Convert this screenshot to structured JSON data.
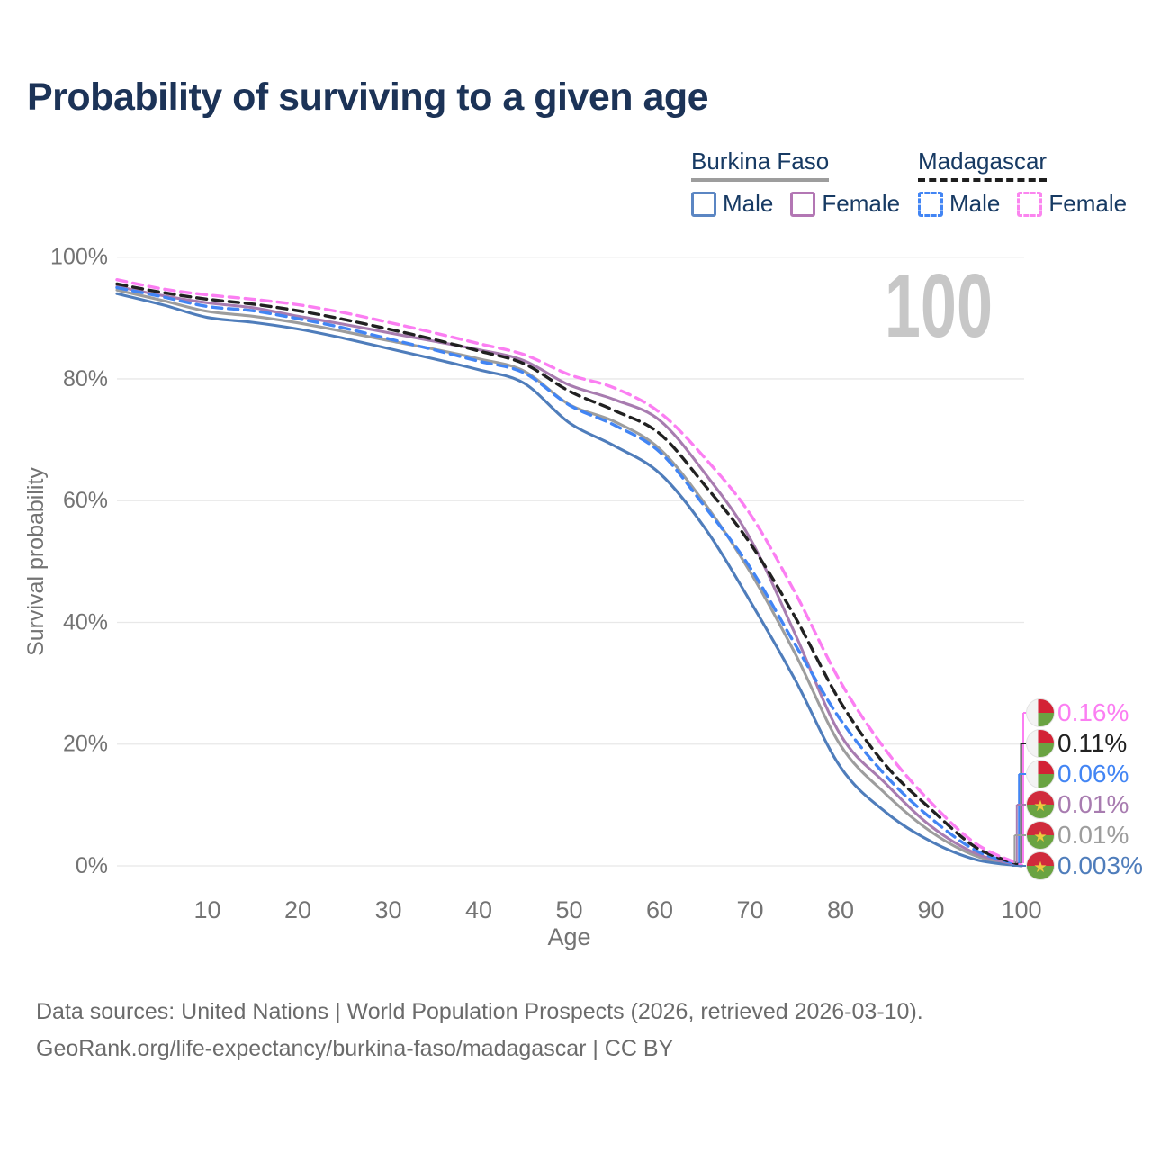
{
  "title": "Probability of surviving to a given age",
  "watermark_age": "100",
  "legend": {
    "groups": [
      {
        "name": "Burkina Faso",
        "line_style": "solid",
        "line_color": "#9d9d9d",
        "items": [
          {
            "label": "Male",
            "color": "#5b86c3",
            "style": "solid"
          },
          {
            "label": "Female",
            "color": "#b377b4",
            "style": "solid"
          }
        ]
      },
      {
        "name": "Madagascar",
        "line_style": "dashed",
        "line_color": "#1f1f1f",
        "items": [
          {
            "label": "Male",
            "color": "#4285f4",
            "style": "dashed"
          },
          {
            "label": "Female",
            "color": "#fb85ef",
            "style": "dashed"
          }
        ]
      }
    ]
  },
  "chart_data": {
    "type": "line",
    "title": "Probability of surviving to a given age",
    "xlabel": "Age",
    "ylabel": "Survival probability",
    "xlim": [
      0,
      100
    ],
    "ylim": [
      0,
      100
    ],
    "grid": "horizontal-only",
    "gridline_color": "#e8e8e8",
    "axis_text_color": "#737373",
    "hover_age_indicator": "100",
    "x_ticks": [
      10,
      20,
      30,
      40,
      50,
      60,
      70,
      80,
      90,
      100
    ],
    "y_ticks": [
      {
        "value": 100,
        "label": "100%"
      },
      {
        "value": 80,
        "label": "80%"
      },
      {
        "value": 60,
        "label": "60%"
      },
      {
        "value": 40,
        "label": "40%"
      },
      {
        "value": 20,
        "label": "20%"
      },
      {
        "value": 0,
        "label": "0%"
      }
    ],
    "x": [
      0,
      5,
      10,
      15,
      20,
      25,
      30,
      35,
      40,
      45,
      50,
      55,
      60,
      65,
      70,
      75,
      80,
      85,
      90,
      95,
      100
    ],
    "series": [
      {
        "name": "Madagascar Female",
        "country": "Madagascar",
        "sex": "Female",
        "color": "#fb7ef2",
        "dash": true,
        "flag": "madagascar",
        "end_label": "0.16%",
        "values": [
          96.3,
          94.8,
          93.8,
          93.1,
          92.2,
          90.9,
          89.3,
          87.6,
          85.8,
          84.0,
          80.7,
          78.5,
          74.5,
          67.0,
          57.8,
          44.8,
          30.2,
          19.0,
          10.4,
          3.6,
          0.16
        ]
      },
      {
        "name": "Madagascar Both sexes",
        "country": "Madagascar",
        "sex": "Both",
        "color": "#212121",
        "dash": true,
        "flag": "madagascar",
        "end_label": "0.11%",
        "values": [
          95.6,
          94.2,
          93.1,
          92.3,
          91.2,
          89.8,
          88.2,
          86.5,
          84.6,
          82.5,
          78.0,
          74.8,
          71.0,
          62.5,
          53.0,
          40.8,
          26.9,
          16.5,
          9.3,
          3.0,
          0.11
        ]
      },
      {
        "name": "Madagascar Male",
        "country": "Madagascar",
        "sex": "Male",
        "color": "#4285f4",
        "dash": true,
        "flag": "madagascar",
        "end_label": "0.06%",
        "values": [
          95.0,
          93.5,
          91.9,
          91.2,
          89.9,
          88.4,
          86.6,
          84.8,
          82.9,
          81.0,
          75.7,
          72.4,
          68.0,
          59.0,
          49.0,
          36.3,
          24.0,
          14.8,
          7.8,
          2.5,
          0.06
        ]
      },
      {
        "name": "Burkina Faso Female",
        "country": "Burkina Faso",
        "sex": "Female",
        "color": "#a87cb0",
        "dash": false,
        "flag": "burkina-faso",
        "end_label": "0.01%",
        "values": [
          95.2,
          93.7,
          92.5,
          91.7,
          90.3,
          89.0,
          87.6,
          86.2,
          84.8,
          83.0,
          79.0,
          76.6,
          73.2,
          64.5,
          53.8,
          38.0,
          21.5,
          13.5,
          6.5,
          2.0,
          0.01
        ]
      },
      {
        "name": "Burkina Faso Both sexes",
        "country": "Burkina Faso",
        "sex": "Both",
        "color": "#9d9d9d",
        "dash": false,
        "flag": "burkina-faso",
        "end_label": "0.01%",
        "values": [
          94.6,
          92.9,
          91.1,
          90.3,
          89.2,
          87.8,
          86.3,
          84.9,
          83.3,
          81.3,
          75.8,
          73.0,
          68.5,
          59.5,
          48.3,
          34.8,
          19.8,
          11.8,
          5.6,
          1.6,
          0.01
        ]
      },
      {
        "name": "Burkina Faso Male",
        "country": "Burkina Faso",
        "sex": "Male",
        "color": "#4f7dbb",
        "dash": false,
        "flag": "burkina-faso",
        "end_label": "0.003%",
        "values": [
          94.0,
          92.2,
          90.1,
          89.3,
          88.2,
          86.7,
          85.0,
          83.3,
          81.5,
          79.3,
          72.8,
          69.0,
          64.5,
          55.5,
          43.5,
          30.5,
          16.2,
          8.8,
          4.0,
          1.0,
          0.003
        ]
      }
    ]
  },
  "flag_colors": {
    "bf_red": "#d02b3c",
    "bf_green": "#6aa342",
    "bf_star": "#eec93f",
    "mg_white": "#f3f3f3",
    "mg_red": "#d32235",
    "mg_green": "#6aa342"
  },
  "footer": {
    "line1": "Data sources: United Nations | World Population Prospects (2026, retrieved 2026-03-10).",
    "line2": "GeoRank.org/life-expectancy/burkina-faso/madagascar | CC BY"
  }
}
